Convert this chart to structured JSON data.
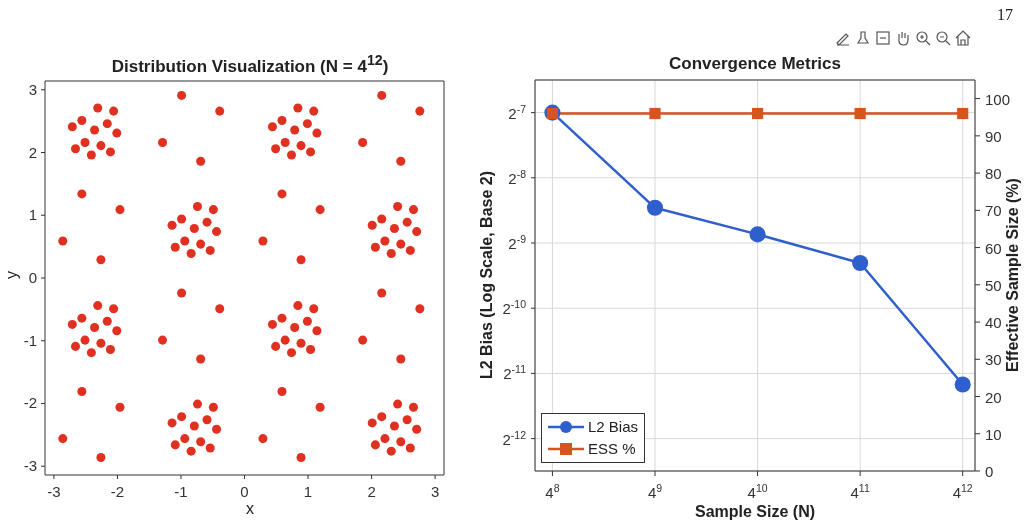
{
  "chart_data": [
    {
      "type": "scatter",
      "title": "Distribution Visualization (N = 4$^{12}$)",
      "xlabel": "x",
      "ylabel": "y",
      "xlim": [
        -3.14,
        3.14
      ],
      "ylim": [
        -3.14,
        3.14
      ],
      "xticks": [
        -3,
        -2,
        -1,
        0,
        1,
        2,
        3
      ],
      "yticks": [
        -3,
        -2,
        -1,
        0,
        1,
        2,
        3
      ],
      "grid": false,
      "marker": "circle",
      "series": [
        {
          "color": "#e03020",
          "x": [
            -2.36,
            -2.16,
            -2.56,
            -2.26,
            -2.51,
            -2.01,
            -2.71,
            -2.31,
            -2.41,
            -2.06,
            -2.66,
            -2.11,
            0.79,
            0.99,
            0.59,
            0.89,
            0.64,
            1.14,
            0.44,
            0.84,
            0.74,
            1.09,
            0.49,
            1.04,
            -0.79,
            -0.59,
            -0.99,
            -0.69,
            -0.94,
            -0.44,
            -1.14,
            -0.74,
            -0.84,
            -0.49,
            -1.09,
            -0.54,
            2.36,
            2.56,
            2.16,
            2.46,
            2.21,
            2.71,
            2.01,
            2.41,
            2.31,
            2.66,
            2.06,
            2.61,
            -2.36,
            -2.16,
            -2.56,
            -2.26,
            -2.51,
            -2.01,
            -2.71,
            -2.31,
            -2.41,
            -2.06,
            -2.66,
            -2.11,
            0.79,
            0.99,
            0.59,
            0.89,
            0.64,
            1.14,
            0.44,
            0.84,
            0.74,
            1.09,
            0.49,
            1.04,
            -0.79,
            -0.59,
            -0.99,
            -0.69,
            -0.94,
            -0.44,
            -1.14,
            -0.74,
            -0.84,
            -0.49,
            -1.09,
            -0.54,
            2.36,
            2.56,
            2.16,
            2.46,
            2.21,
            2.71,
            2.01,
            2.41,
            2.31,
            2.66,
            2.06,
            2.61,
            -0.39,
            -1.29,
            -0.69,
            -0.99,
            2.76,
            1.86,
            2.46,
            2.16,
            -1.96,
            -2.86,
            -2.26,
            -2.56,
            1.19,
            0.29,
            0.89,
            0.59,
            -0.39,
            -1.29,
            -0.69,
            -0.99,
            2.76,
            1.86,
            2.46,
            2.16,
            -1.96,
            -2.86,
            -2.26,
            -2.56,
            1.19,
            0.29,
            0.89,
            0.59
          ],
          "values": [
            2.36,
            2.46,
            2.51,
            2.11,
            2.16,
            2.31,
            2.41,
            2.71,
            1.96,
            2.66,
            2.06,
            2.01,
            2.36,
            2.46,
            2.51,
            2.11,
            2.16,
            2.31,
            2.41,
            2.71,
            1.96,
            2.66,
            2.06,
            2.01,
            0.79,
            0.89,
            0.94,
            0.54,
            0.59,
            0.74,
            0.84,
            1.14,
            0.39,
            1.09,
            0.49,
            0.44,
            0.79,
            0.89,
            0.94,
            0.54,
            0.59,
            0.74,
            0.84,
            1.14,
            0.39,
            1.09,
            0.49,
            0.44,
            -0.79,
            -0.69,
            -0.64,
            -1.04,
            -0.99,
            -0.84,
            -0.74,
            -0.44,
            -1.19,
            -0.49,
            -1.09,
            -1.14,
            -0.79,
            -0.69,
            -0.64,
            -1.04,
            -0.99,
            -0.84,
            -0.74,
            -0.44,
            -1.19,
            -0.49,
            -1.09,
            -1.14,
            -2.36,
            -2.26,
            -2.21,
            -2.61,
            -2.56,
            -2.41,
            -2.31,
            -2.01,
            -2.76,
            -2.06,
            -2.66,
            -2.71,
            -2.36,
            -2.26,
            -2.21,
            -2.61,
            -2.56,
            -2.41,
            -2.31,
            -2.01,
            -2.76,
            -2.06,
            -2.66,
            -2.71,
            2.66,
            2.16,
            1.86,
            2.91,
            2.66,
            2.16,
            1.86,
            2.91,
            1.09,
            0.59,
            0.29,
            1.34,
            1.09,
            0.59,
            0.29,
            1.34,
            -0.49,
            -0.99,
            -1.29,
            -0.24,
            -0.49,
            -0.99,
            -1.29,
            -0.24,
            -2.06,
            -2.56,
            -2.86,
            -1.81,
            -2.06,
            -2.56,
            -2.86,
            -1.81
          ]
        }
      ]
    },
    {
      "type": "line",
      "title": "Convergence Metrics",
      "xlabel": "Sample Size (N)",
      "ylabel": "L2 Bias (Log Scale, Base 2)",
      "y2label": "Effective Sample Size (%)",
      "annotations": [
        "17"
      ],
      "categories": [
        "4$^{8}$",
        "4$^{9}$",
        "4$^{10}$",
        "4$^{11}$",
        "4$^{12}$"
      ],
      "ylim": [
        0.000173,
        0.01105
      ],
      "yticks": [
        {
          "value": 0.000244140625,
          "label": "2$^{-12}$"
        },
        {
          "value": 0.00048828125,
          "label": "2$^{-11}$"
        },
        {
          "value": 0.0009765625,
          "label": "2$^{-10}$"
        },
        {
          "value": 0.001953125,
          "label": "2$^{-9}$"
        },
        {
          "value": 0.00390625,
          "label": "2$^{-8}$"
        },
        {
          "value": 0.0078125,
          "label": "2$^{-7}$"
        }
      ],
      "y2lim": [
        0,
        105
      ],
      "y2ticks": [
        0,
        10,
        20,
        30,
        40,
        50,
        60,
        70,
        80,
        90,
        100
      ],
      "log": "y",
      "grid": true,
      "legend": "bottom left",
      "line_style": "solid",
      "series": [
        {
          "name": "L2 Bias",
          "color": "#2f5fcc",
          "marker": "circle",
          "values": [
            0.00781,
            0.00284,
            0.00214,
            0.00158,
            0.000434
          ]
        },
        {
          "name": "ESS %",
          "color": "#d9531e",
          "marker": "square",
          "axis": "y2",
          "values": [
            96,
            96,
            96,
            96,
            96
          ]
        }
      ]
    }
  ]
}
